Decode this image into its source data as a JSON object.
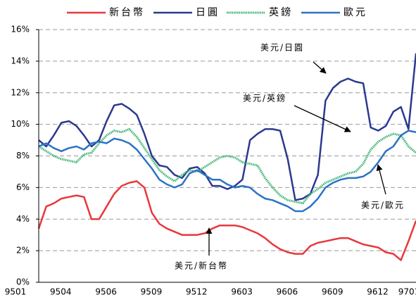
{
  "chart_data": {
    "type": "line",
    "categories": [
      "9501",
      null,
      null,
      null,
      null,
      null,
      "9504",
      null,
      null,
      null,
      null,
      null,
      "9506",
      null,
      null,
      null,
      null,
      null,
      "9509",
      null,
      null,
      null,
      null,
      null,
      "9512",
      null,
      null,
      null,
      null,
      null,
      "9603",
      null,
      null,
      null,
      null,
      null,
      "9606",
      null,
      null,
      null,
      null,
      null,
      "9609",
      null,
      null,
      null,
      null,
      null,
      "9612",
      null,
      "9701"
    ],
    "series": [
      {
        "name": "新台幣",
        "color": "#e8383d",
        "values": [
          3.4,
          4.8,
          5.0,
          5.3,
          5.4,
          5.5,
          5.4,
          4.0,
          4.0,
          4.8,
          5.6,
          6.1,
          6.3,
          6.4,
          6.0,
          4.4,
          3.7,
          3.4,
          3.2,
          3.0,
          3.0,
          3.0,
          3.1,
          3.4,
          3.6,
          3.6,
          3.6,
          3.5,
          3.3,
          3.1,
          2.8,
          2.4,
          2.1,
          1.9,
          1.8,
          1.8,
          2.3,
          2.5,
          2.6,
          2.7,
          2.8,
          2.8,
          2.6,
          2.4,
          2.3,
          2.2,
          1.9,
          1.8,
          1.4,
          2.6,
          3.9
        ]
      },
      {
        "name": "日圓",
        "color": "#2b3990",
        "values": [
          9.0,
          8.6,
          9.3,
          10.1,
          10.2,
          9.9,
          9.3,
          8.6,
          9.0,
          10.2,
          11.2,
          11.3,
          11.0,
          10.6,
          9.4,
          8.0,
          7.4,
          7.3,
          6.8,
          6.6,
          7.2,
          7.3,
          6.9,
          6.1,
          6.1,
          5.9,
          6.1,
          6.5,
          9.0,
          9.4,
          9.7,
          9.7,
          9.6,
          7.8,
          5.2,
          5.3,
          5.6,
          6.8,
          11.5,
          12.3,
          12.7,
          12.9,
          12.7,
          12.6,
          9.8,
          9.6,
          9.9,
          10.8,
          11.1,
          9.7,
          14.5
        ]
      },
      {
        "name": "英鎊",
        "color": "#3cb371",
        "values": [
          8.6,
          8.3,
          8.0,
          7.8,
          7.7,
          7.6,
          8.1,
          8.2,
          8.8,
          9.3,
          9.6,
          9.5,
          9.7,
          9.2,
          8.5,
          7.8,
          7.1,
          6.7,
          6.4,
          6.8,
          7.1,
          7.0,
          7.3,
          7.6,
          7.9,
          8.0,
          7.9,
          7.6,
          7.5,
          7.4,
          6.6,
          6.0,
          5.5,
          5.2,
          5.1,
          5.0,
          5.6,
          5.9,
          6.3,
          6.5,
          6.7,
          6.9,
          7.0,
          7.5,
          8.4,
          8.9,
          9.2,
          9.4,
          9.3,
          8.6,
          8.2
        ]
      },
      {
        "name": "歐元",
        "color": "#2b73c4",
        "values": [
          8.6,
          8.8,
          8.5,
          8.3,
          8.5,
          8.6,
          8.4,
          8.8,
          8.9,
          8.8,
          9.1,
          9.0,
          8.8,
          8.4,
          7.8,
          7.2,
          6.5,
          6.2,
          6.0,
          6.2,
          6.9,
          7.1,
          6.8,
          6.5,
          6.5,
          6.2,
          6.0,
          6.1,
          6.0,
          5.6,
          5.3,
          5.2,
          5.0,
          4.8,
          4.5,
          4.5,
          4.8,
          5.3,
          6.0,
          6.3,
          6.5,
          6.6,
          6.6,
          6.7,
          7.0,
          7.6,
          8.3,
          8.6,
          9.3,
          9.6,
          9.5
        ]
      }
    ],
    "ylim": [
      0,
      16
    ],
    "yticks": [
      {
        "value": 0,
        "label": "0%"
      },
      {
        "value": 2,
        "label": "2%"
      },
      {
        "value": 4,
        "label": "4%"
      },
      {
        "value": 6,
        "label": "6%"
      },
      {
        "value": 8,
        "label": "8%"
      },
      {
        "value": 10,
        "label": "10%"
      },
      {
        "value": 12,
        "label": "12%"
      },
      {
        "value": 14,
        "label": "14%"
      },
      {
        "value": 16,
        "label": "16%"
      }
    ],
    "grid": true,
    "legend": "top",
    "annotations": [
      "美元/日圓",
      "美元/英鎊",
      "美元/歐元",
      "美元/新台幣"
    ]
  }
}
